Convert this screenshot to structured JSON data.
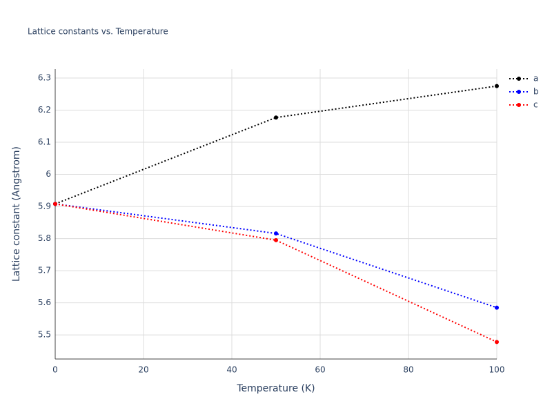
{
  "chart_data": {
    "type": "line",
    "title": "Lattice constants vs. Temperature",
    "x_label": "Temperature (K)",
    "y_label": "Lattice constant (Angstrom)",
    "x": [
      0,
      50,
      100
    ],
    "series": [
      {
        "name": "a",
        "color": "#000000",
        "values": [
          5.908,
          6.177,
          6.275
        ]
      },
      {
        "name": "b",
        "color": "#0000ff",
        "values": [
          5.908,
          5.816,
          5.585
        ]
      },
      {
        "name": "c",
        "color": "#ff0000",
        "values": [
          5.908,
          5.795,
          5.478
        ]
      }
    ],
    "xlim": [
      0,
      100
    ],
    "xticks": [
      0,
      20,
      40,
      60,
      80,
      100
    ],
    "ylim": [
      5.425,
      6.328
    ],
    "yticks": [
      5.5,
      5.6,
      5.7,
      5.8,
      5.9,
      6,
      6.1,
      6.2,
      6.3
    ],
    "grid": true,
    "legend": "top-right"
  }
}
